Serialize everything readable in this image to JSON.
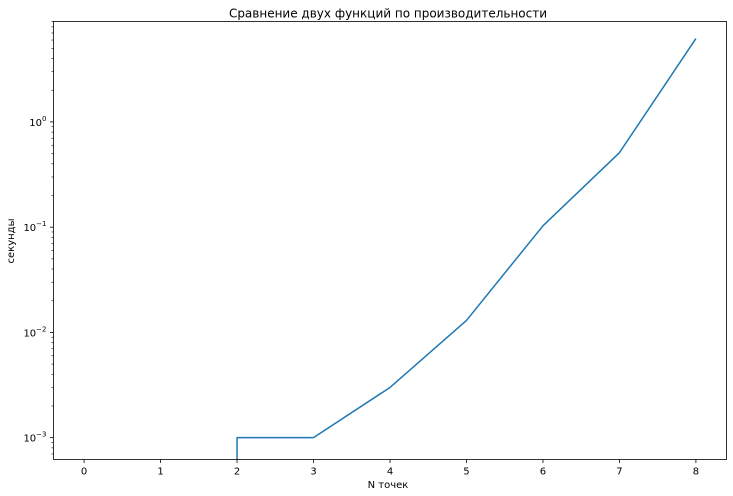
{
  "chart_data": {
    "type": "line",
    "title": "Сравнение двух функций по производительности",
    "xlabel": "N точек",
    "ylabel": "секунды",
    "x_ticks": [
      "0",
      "1",
      "2",
      "3",
      "4",
      "5",
      "6",
      "7",
      "8"
    ],
    "y_scale": "log",
    "y_ticks": [
      {
        "value": 0.001,
        "base": "10",
        "exp": "−3"
      },
      {
        "value": 0.01,
        "base": "10",
        "exp": "−2"
      },
      {
        "value": 0.1,
        "base": "10",
        "exp": "−1"
      },
      {
        "value": 1,
        "base": "10",
        "exp": "0"
      }
    ],
    "xlim": [
      -0.4,
      8.4
    ],
    "ylim": [
      0.00062,
      9.0
    ],
    "grid": false,
    "series": [
      {
        "color": "#1f77b4",
        "x": [
          0,
          1,
          2,
          2,
          3,
          4,
          5,
          6,
          7,
          8
        ],
        "y": [
          0,
          0,
          0,
          0.001,
          0.001,
          0.003,
          0.013,
          0.103,
          0.51,
          6.2
        ]
      }
    ]
  }
}
